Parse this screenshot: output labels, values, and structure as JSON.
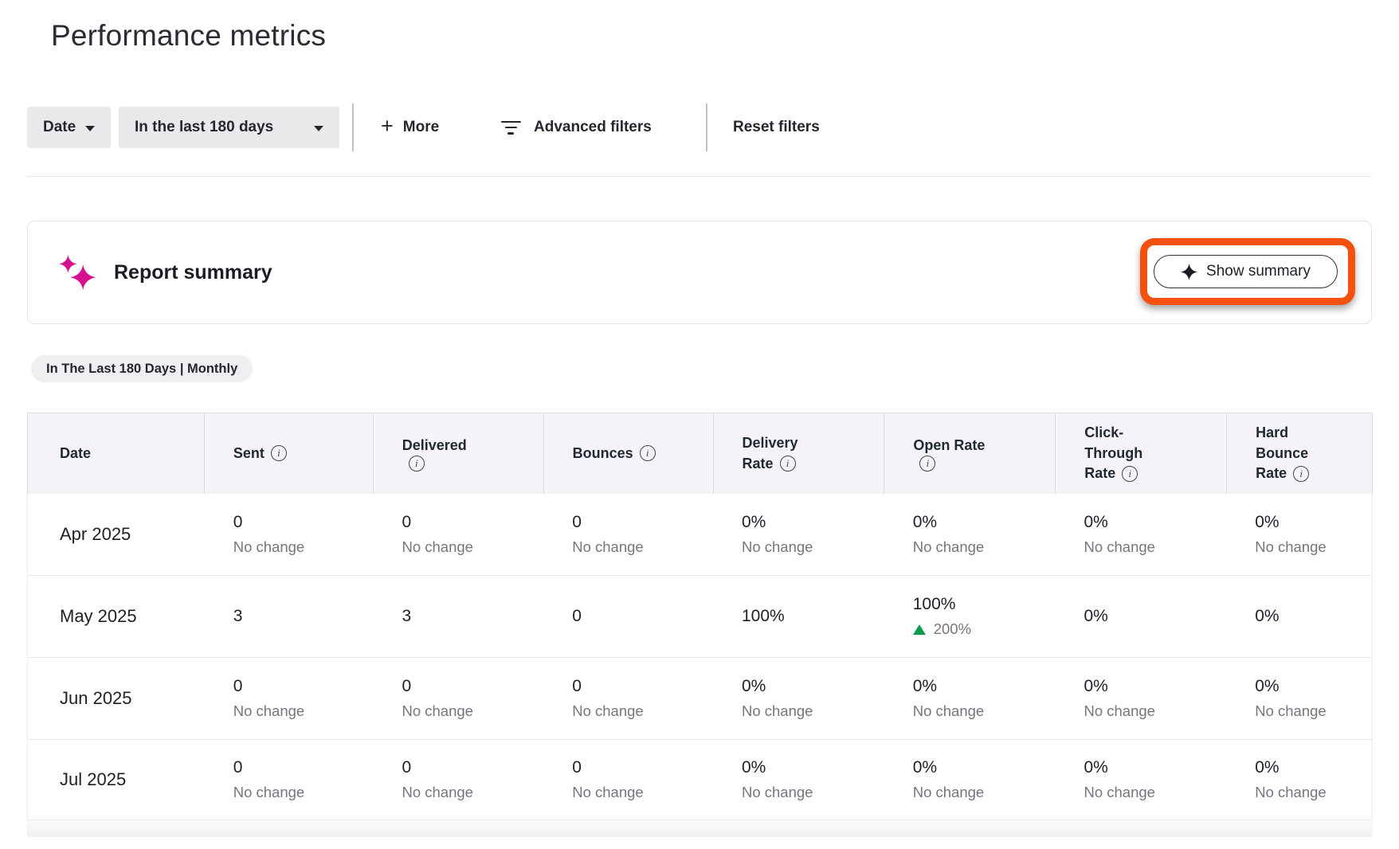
{
  "page": {
    "title": "Performance metrics"
  },
  "filters": {
    "date_label": "Date",
    "range_label": "In the last 180 days",
    "more_label": "More",
    "advanced_label": "Advanced filters",
    "reset_label": "Reset filters"
  },
  "summary_card": {
    "title": "Report summary",
    "button_label": "Show summary"
  },
  "badge": {
    "label": "In The Last 180 Days | Monthly"
  },
  "table": {
    "columns": [
      {
        "id": "date",
        "lines": [
          "Date"
        ],
        "info": false
      },
      {
        "id": "sent",
        "lines": [
          "Sent"
        ],
        "info": "inline"
      },
      {
        "id": "delivered",
        "lines": [
          "Delivered"
        ],
        "info": "own-line"
      },
      {
        "id": "bounces",
        "lines": [
          "Bounces"
        ],
        "info": "inline"
      },
      {
        "id": "delivery-rate",
        "lines": [
          "Delivery",
          "Rate"
        ],
        "info": "inline"
      },
      {
        "id": "open-rate",
        "lines": [
          "Open Rate"
        ],
        "info": "own-line"
      },
      {
        "id": "click-through-rate",
        "lines": [
          "Click-",
          "Through",
          "Rate"
        ],
        "info": "inline"
      },
      {
        "id": "hard-bounce-rate",
        "lines": [
          "Hard",
          "Bounce",
          "Rate"
        ],
        "info": "inline"
      }
    ],
    "rows": [
      {
        "date": "Apr 2025",
        "cells": [
          {
            "value": "0",
            "sub": "No change"
          },
          {
            "value": "0",
            "sub": "No change"
          },
          {
            "value": "0",
            "sub": "No change"
          },
          {
            "value": "0%",
            "sub": "No change"
          },
          {
            "value": "0%",
            "sub": "No change"
          },
          {
            "value": "0%",
            "sub": "No change"
          },
          {
            "value": "0%",
            "sub": "No change"
          }
        ]
      },
      {
        "date": "May 2025",
        "cells": [
          {
            "value": "3"
          },
          {
            "value": "3"
          },
          {
            "value": "0"
          },
          {
            "value": "100%"
          },
          {
            "value": "100%",
            "delta": "200%",
            "delta_dir": "up"
          },
          {
            "value": "0%"
          },
          {
            "value": "0%"
          }
        ]
      },
      {
        "date": "Jun 2025",
        "cells": [
          {
            "value": "0",
            "sub": "No change"
          },
          {
            "value": "0",
            "sub": "No change"
          },
          {
            "value": "0",
            "sub": "No change"
          },
          {
            "value": "0%",
            "sub": "No change"
          },
          {
            "value": "0%",
            "sub": "No change"
          },
          {
            "value": "0%",
            "sub": "No change"
          },
          {
            "value": "0%",
            "sub": "No change"
          }
        ]
      },
      {
        "date": "Jul 2025",
        "cells": [
          {
            "value": "0",
            "sub": "No change"
          },
          {
            "value": "0",
            "sub": "No change"
          },
          {
            "value": "0",
            "sub": "No change"
          },
          {
            "value": "0%",
            "sub": "No change"
          },
          {
            "value": "0%",
            "sub": "No change"
          },
          {
            "value": "0%",
            "sub": "No change"
          },
          {
            "value": "0%",
            "sub": "No change"
          }
        ]
      }
    ]
  },
  "colors": {
    "annotation_orange": "#F4500E",
    "sparkle_pink": "#D6118F",
    "delta_up_green": "#0E9B50",
    "header_bg": "#F5F2F8"
  }
}
